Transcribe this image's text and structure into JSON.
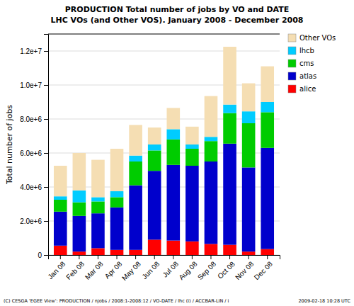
{
  "chart_data": {
    "type": "bar",
    "stacked": true,
    "title": "PRODUCTION Total number of jobs by VO and DATE",
    "subtitle": "LHC VOs (and Other VOS). January 2008 - December 2008",
    "ylabel": "Total number of jobs",
    "categories": [
      "Jan 08",
      "Feb 08",
      "Mar 08",
      "Apr 08",
      "May 08",
      "Jun 08",
      "Jul 08",
      "Aug 08",
      "Sep 08",
      "Oct 08",
      "Nov 08",
      "Dec 08"
    ],
    "series": [
      {
        "name": "alice",
        "color": "#ff0000",
        "values": [
          550000,
          200000,
          400000,
          300000,
          300000,
          900000,
          850000,
          800000,
          650000,
          600000,
          200000,
          350000
        ]
      },
      {
        "name": "atlas",
        "color": "#0000cc",
        "values": [
          2000000,
          2100000,
          2050000,
          2500000,
          3800000,
          4050000,
          4450000,
          4450000,
          4850000,
          5950000,
          4950000,
          5950000
        ]
      },
      {
        "name": "cms",
        "color": "#00cc00",
        "values": [
          700000,
          800000,
          700000,
          600000,
          1400000,
          1200000,
          1500000,
          1000000,
          1200000,
          1800000,
          2600000,
          2100000
        ]
      },
      {
        "name": "lhcb",
        "color": "#00ccff",
        "values": [
          200000,
          700000,
          250000,
          350000,
          350000,
          350000,
          600000,
          250000,
          250000,
          500000,
          700000,
          600000
        ]
      },
      {
        "name": "Other VOs",
        "color": "#f5deb3",
        "values": [
          1800000,
          2200000,
          2200000,
          2500000,
          1800000,
          1000000,
          1250000,
          1050000,
          2400000,
          3400000,
          1650000,
          2100000
        ]
      }
    ],
    "ylim": [
      0,
      13000000
    ],
    "yticks": [
      0,
      {
        "value": 2000000,
        "label": "2.0e+6"
      },
      {
        "value": 4000000,
        "label": "4.0e+6"
      },
      {
        "value": 6000000,
        "label": "6.0e+6"
      },
      {
        "value": 8000000,
        "label": "8.0e+6"
      },
      {
        "value": 10000000,
        "label": "1.0e+7"
      },
      {
        "value": 12000000,
        "label": "1.2e+7"
      }
    ],
    "grid": true,
    "legend": "right",
    "annotations": [
      "(C) CESGA 'EGEE View': PRODUCTION / njobs / 2008:1-2008:12 / VO-DATE / lhc (i) / ACCBAR-LIN / i",
      "2009-02-18 10:28 UTC"
    ]
  }
}
